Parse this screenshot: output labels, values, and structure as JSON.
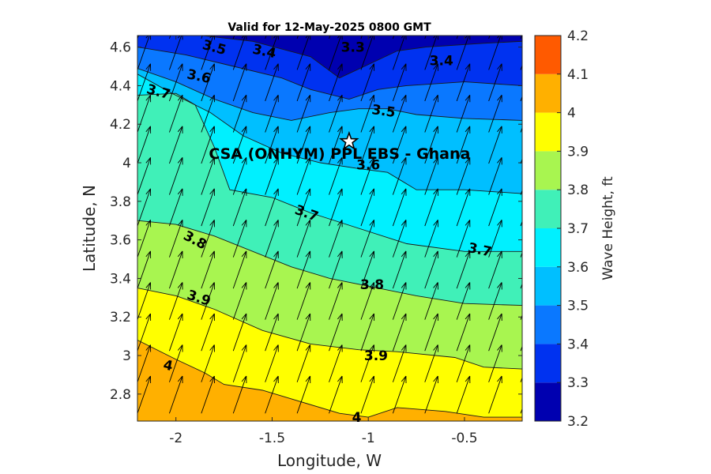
{
  "chart_data": {
    "type": "heatmap",
    "title": "Valid for 12-May-2025 0800 GMT",
    "xlabel": "Longitude, W",
    "ylabel": "Latitude, N",
    "xlim": [
      -2.2,
      -0.2
    ],
    "ylim": [
      2.66,
      4.66
    ],
    "xticks": [
      -2,
      -1.5,
      -1,
      -0.5
    ],
    "xtick_labels": [
      "-2",
      "-1.5",
      "-1",
      "-0.5"
    ],
    "yticks": [
      2.8,
      3,
      3.2,
      3.4,
      3.6,
      3.8,
      4,
      4.2,
      4.4,
      4.6
    ],
    "ytick_labels": [
      "2.8",
      "3",
      "3.2",
      "3.4",
      "3.6",
      "3.8",
      "4",
      "4.2",
      "4.4",
      "4.6"
    ],
    "colorbar": {
      "label": "Wave Height, ft",
      "levels": [
        3.2,
        3.3,
        3.4,
        3.5,
        3.6,
        3.7,
        3.8,
        3.9,
        4,
        4.1,
        4.2
      ],
      "tick_labels": [
        "3.2",
        "3.3",
        "3.4",
        "3.5",
        "3.6",
        "3.7",
        "3.8",
        "3.9",
        "4",
        "4.1",
        "4.2"
      ],
      "colors": [
        "#0000b0",
        "#0032f0",
        "#0a78ff",
        "#00bfff",
        "#00f0ff",
        "#40f0b8",
        "#a8f550",
        "#ffff00",
        "#ffb000",
        "#ff5a00"
      ]
    },
    "contours": [
      {
        "level": 3.3,
        "points": [
          [
            -1.86,
            4.66
          ],
          [
            -1.6,
            4.63
          ],
          [
            -1.3,
            4.55
          ],
          [
            -1.15,
            4.44
          ],
          [
            -1.02,
            4.5
          ],
          [
            -0.85,
            4.58
          ],
          [
            -0.7,
            4.6
          ],
          [
            -0.4,
            4.62
          ],
          [
            -0.2,
            4.63
          ]
        ]
      },
      {
        "level": 3.4,
        "points": [
          [
            -2.2,
            4.6
          ],
          [
            -1.95,
            4.56
          ],
          [
            -1.7,
            4.5
          ],
          [
            -1.45,
            4.44
          ],
          [
            -1.3,
            4.38
          ],
          [
            -1.1,
            4.33
          ],
          [
            -0.95,
            4.38
          ],
          [
            -0.8,
            4.4
          ],
          [
            -0.5,
            4.42
          ],
          [
            -0.2,
            4.4
          ]
        ]
      },
      {
        "level": 3.5,
        "points": [
          [
            -2.2,
            4.49
          ],
          [
            -2.0,
            4.42
          ],
          [
            -1.8,
            4.33
          ],
          [
            -1.6,
            4.26
          ],
          [
            -1.4,
            4.22
          ],
          [
            -1.2,
            4.26
          ],
          [
            -1.05,
            4.28
          ],
          [
            -0.9,
            4.28
          ],
          [
            -0.75,
            4.25
          ],
          [
            -0.5,
            4.23
          ],
          [
            -0.2,
            4.22
          ]
        ]
      },
      {
        "level": 3.6,
        "points": [
          [
            -2.2,
            4.46
          ],
          [
            -2.02,
            4.36
          ],
          [
            -1.82,
            4.26
          ],
          [
            -1.65,
            4.14
          ],
          [
            -1.45,
            4.05
          ],
          [
            -1.25,
            4.0
          ],
          [
            -1.05,
            3.97
          ],
          [
            -0.9,
            3.95
          ],
          [
            -0.75,
            3.86
          ],
          [
            -0.5,
            3.86
          ],
          [
            -0.2,
            3.84
          ]
        ]
      },
      {
        "level": 3.7,
        "points": [
          [
            -2.2,
            4.35
          ],
          [
            -2.0,
            4.36
          ],
          [
            -1.9,
            4.3
          ],
          [
            -1.8,
            4.08
          ],
          [
            -1.72,
            3.86
          ],
          [
            -1.5,
            3.82
          ],
          [
            -1.3,
            3.74
          ],
          [
            -1.05,
            3.66
          ],
          [
            -0.8,
            3.58
          ],
          [
            -0.5,
            3.54
          ],
          [
            -0.2,
            3.54
          ]
        ]
      },
      {
        "level": 3.8,
        "points": [
          [
            -2.2,
            3.7
          ],
          [
            -2.0,
            3.68
          ],
          [
            -1.8,
            3.62
          ],
          [
            -1.6,
            3.54
          ],
          [
            -1.4,
            3.46
          ],
          [
            -1.2,
            3.4
          ],
          [
            -1.0,
            3.36
          ],
          [
            -0.75,
            3.31
          ],
          [
            -0.5,
            3.27
          ],
          [
            -0.2,
            3.26
          ]
        ]
      },
      {
        "level": 3.9,
        "points": [
          [
            -2.2,
            3.35
          ],
          [
            -2.0,
            3.31
          ],
          [
            -1.8,
            3.24
          ],
          [
            -1.55,
            3.13
          ],
          [
            -1.3,
            3.06
          ],
          [
            -1.05,
            3.03
          ],
          [
            -0.85,
            3.02
          ],
          [
            -0.55,
            2.99
          ],
          [
            -0.4,
            2.94
          ],
          [
            -0.2,
            2.93
          ]
        ]
      },
      {
        "level": 4.0,
        "points": [
          [
            -2.2,
            3.08
          ],
          [
            -2.0,
            2.98
          ],
          [
            -1.85,
            2.91
          ],
          [
            -1.75,
            2.85
          ],
          [
            -1.55,
            2.82
          ],
          [
            -1.35,
            2.76
          ],
          [
            -1.15,
            2.7
          ],
          [
            -1.0,
            2.68
          ],
          [
            -0.85,
            2.73
          ],
          [
            -0.6,
            2.71
          ],
          [
            -0.4,
            2.68
          ],
          [
            -0.2,
            2.68
          ]
        ]
      }
    ],
    "contour_labels": [
      {
        "text": "3.3",
        "x": -1.08,
        "y": 4.6,
        "angle": 0
      },
      {
        "text": "3.4",
        "x": -1.54,
        "y": 4.58,
        "angle": 12
      },
      {
        "text": "3.4",
        "x": -0.62,
        "y": 4.53,
        "angle": 0
      },
      {
        "text": "3.5",
        "x": -1.8,
        "y": 4.6,
        "angle": 15
      },
      {
        "text": "3.5",
        "x": -0.92,
        "y": 4.27,
        "angle": 8
      },
      {
        "text": "3.6",
        "x": -1.88,
        "y": 4.45,
        "angle": 12
      },
      {
        "text": "3.6",
        "x": -1.0,
        "y": 3.99,
        "angle": 0
      },
      {
        "text": "3.7",
        "x": -2.09,
        "y": 4.37,
        "angle": 15
      },
      {
        "text": "3.7",
        "x": -1.32,
        "y": 3.74,
        "angle": 20
      },
      {
        "text": "3.7",
        "x": -0.42,
        "y": 3.55,
        "angle": 12
      },
      {
        "text": "3.8",
        "x": -1.9,
        "y": 3.6,
        "angle": 28
      },
      {
        "text": "3.8",
        "x": -0.98,
        "y": 3.37,
        "angle": 0
      },
      {
        "text": "3.9",
        "x": -1.88,
        "y": 3.3,
        "angle": 18
      },
      {
        "text": "3.9",
        "x": -0.96,
        "y": 3.0,
        "angle": 0
      },
      {
        "text": "4",
        "x": -2.04,
        "y": 2.95,
        "angle": 12
      },
      {
        "text": "4",
        "x": -1.06,
        "y": 2.68,
        "angle": 0
      }
    ],
    "vector_field": {
      "direction_note": "NNE",
      "u": 0.35,
      "v": 1.0,
      "x_start": -2.2,
      "x_step": 0.166,
      "y_start": 2.7,
      "y_step": 0.162
    },
    "site": {
      "name": "CSA (ONHYM) PPL EBS  - Ghana",
      "lon": -1.1,
      "lat": 4.11
    }
  }
}
